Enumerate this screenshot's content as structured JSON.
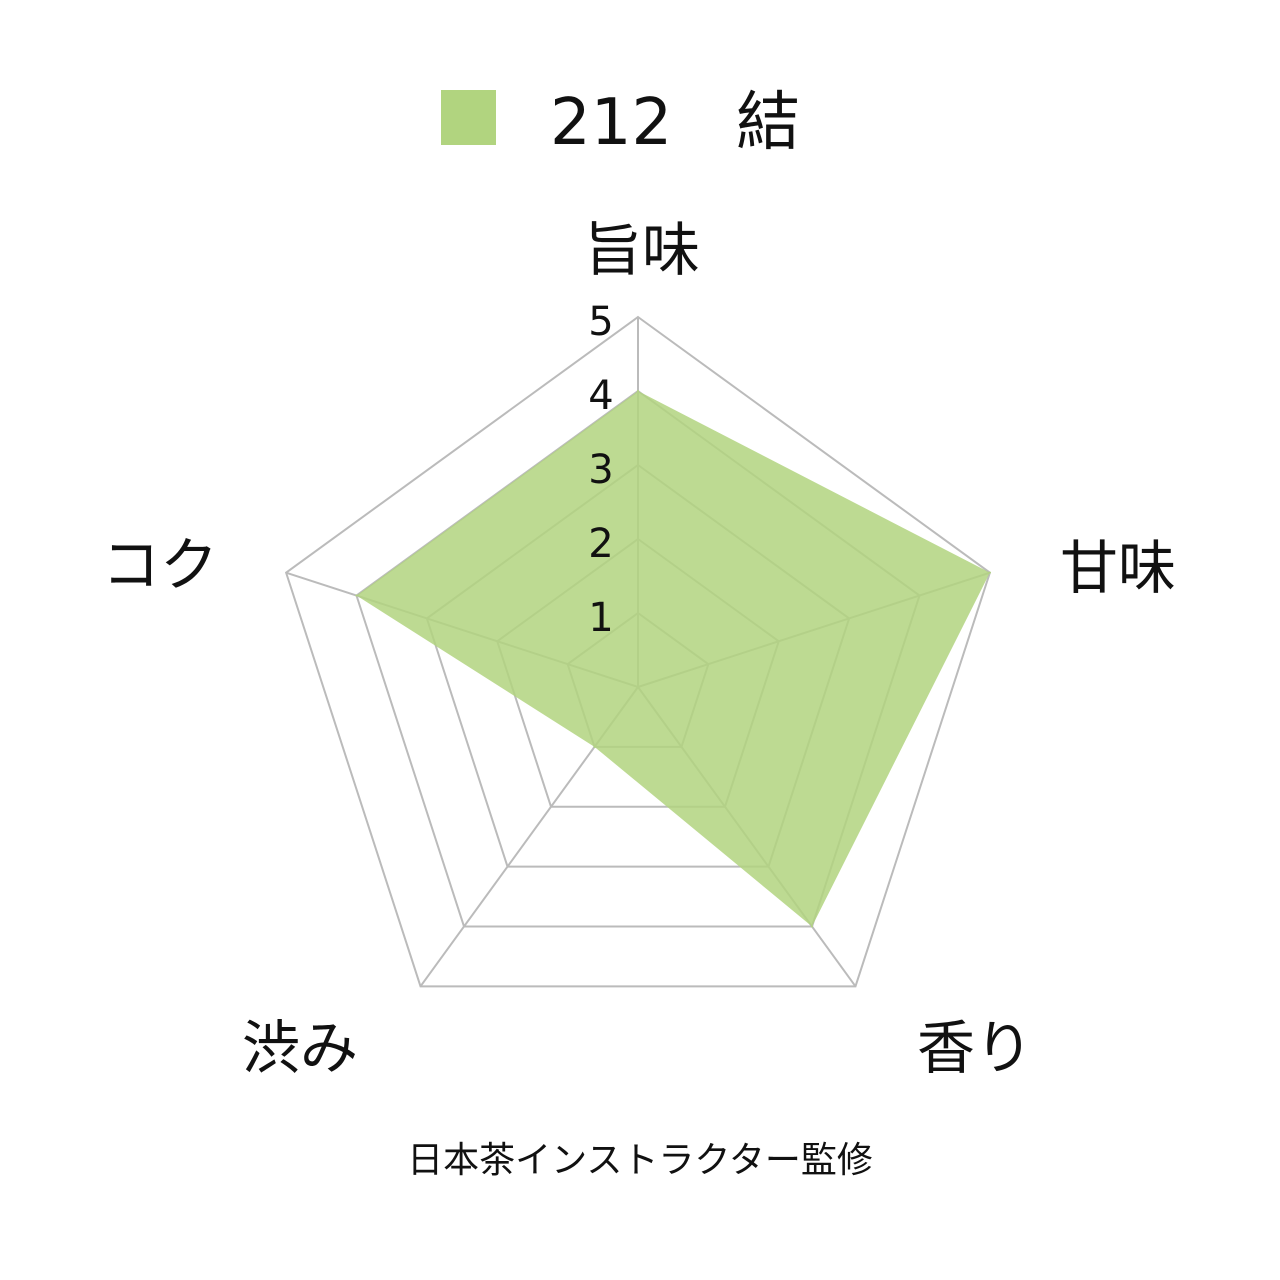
{
  "chart_data": {
    "type": "radar",
    "axes": [
      "旨味",
      "甘味",
      "香り",
      "渋み",
      "コク"
    ],
    "rlim": [
      0,
      5
    ],
    "ticks": [
      "1",
      "2",
      "3",
      "4",
      "5"
    ],
    "series": [
      {
        "name": "212　結",
        "values": [
          4,
          5,
          4,
          1,
          4
        ],
        "color": "#b1d47f"
      }
    ],
    "legend": "top",
    "grid_color": "#bbbbbb",
    "footer": "日本茶インストラクター監修"
  }
}
